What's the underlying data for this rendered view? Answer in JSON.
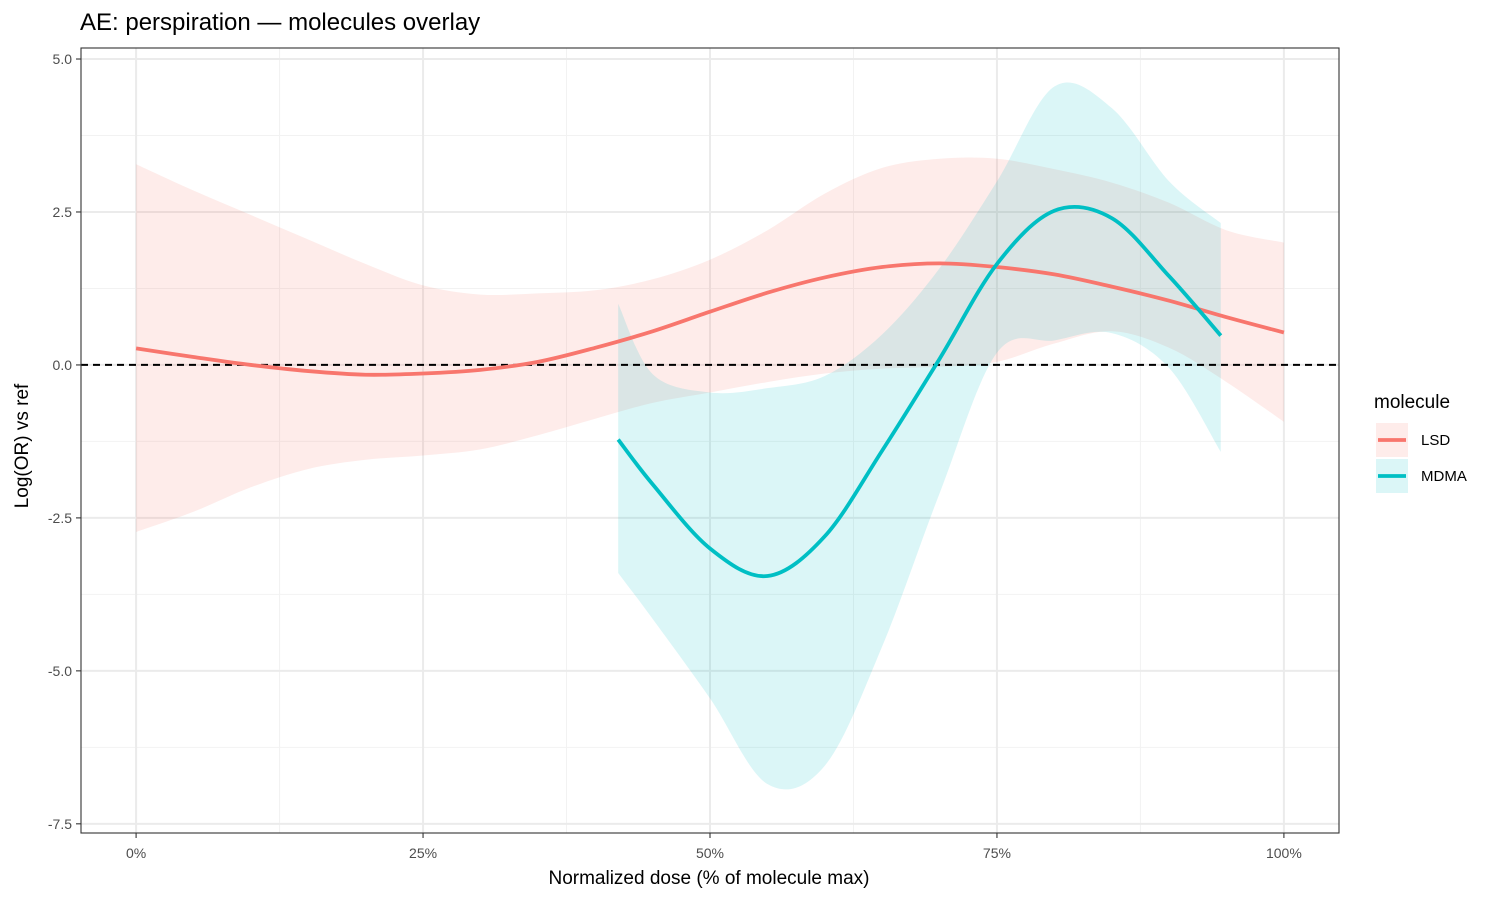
{
  "chart_data": {
    "type": "line",
    "title": "AE: perspiration — molecules overlay",
    "xlabel": "Normalized dose (% of molecule max)",
    "ylabel": "Log(OR) vs ref",
    "xlim": [
      -0.048,
      1.048
    ],
    "ylim": [
      -7.65,
      5.18
    ],
    "x_ticks": [
      0,
      0.25,
      0.5,
      0.75,
      1
    ],
    "x_tick_labels": [
      "0%",
      "25%",
      "50%",
      "75%",
      "100%"
    ],
    "y_ticks": [
      -7.5,
      -5,
      -2.5,
      0,
      2.5,
      5
    ],
    "y_tick_labels": [
      "-7.5",
      "-5.0",
      "-2.5",
      "0.0",
      "2.5",
      "5.0"
    ],
    "grid": true,
    "reference_line": {
      "y": 0,
      "style": "dashed",
      "color": "#000000"
    },
    "legend": {
      "title": "molecule",
      "position": "right"
    },
    "series": [
      {
        "name": "LSD",
        "color": "#F8766D",
        "x": [
          0,
          0.05,
          0.1,
          0.15,
          0.2,
          0.25,
          0.3,
          0.35,
          0.4,
          0.45,
          0.5,
          0.55,
          0.6,
          0.65,
          0.7,
          0.75,
          0.8,
          0.85,
          0.9,
          0.95,
          1.0
        ],
        "y": [
          0.27,
          0.13,
          0.0,
          -0.1,
          -0.16,
          -0.14,
          -0.08,
          0.05,
          0.28,
          0.55,
          0.87,
          1.18,
          1.43,
          1.6,
          1.66,
          1.6,
          1.48,
          1.28,
          1.05,
          0.78,
          0.53
        ],
        "upper": [
          3.28,
          2.85,
          2.45,
          2.05,
          1.65,
          1.3,
          1.15,
          1.17,
          1.22,
          1.4,
          1.72,
          2.2,
          2.8,
          3.22,
          3.37,
          3.37,
          3.2,
          2.98,
          2.65,
          2.2,
          2.0
        ],
        "lower": [
          -2.73,
          -2.4,
          -2.0,
          -1.7,
          -1.55,
          -1.48,
          -1.38,
          -1.15,
          -0.88,
          -0.62,
          -0.45,
          -0.28,
          -0.14,
          -0.06,
          -0.03,
          0.05,
          0.35,
          0.55,
          0.28,
          -0.28,
          -0.93
        ]
      },
      {
        "name": "MDMA",
        "color": "#00BFC4",
        "x": [
          0.42,
          0.45,
          0.5,
          0.55,
          0.6,
          0.65,
          0.7,
          0.75,
          0.8,
          0.85,
          0.9,
          0.945
        ],
        "y": [
          -1.22,
          -1.95,
          -3.0,
          -3.45,
          -2.8,
          -1.4,
          0.1,
          1.65,
          2.52,
          2.4,
          1.45,
          0.48
        ],
        "upper": [
          1.0,
          -0.15,
          -0.45,
          -0.38,
          -0.18,
          0.5,
          1.58,
          3.0,
          4.55,
          4.2,
          3.0,
          2.32
        ],
        "lower": [
          -3.4,
          -4.15,
          -5.45,
          -6.85,
          -6.55,
          -4.6,
          -2.1,
          0.2,
          0.4,
          0.52,
          -0.05,
          -1.42
        ]
      }
    ]
  }
}
